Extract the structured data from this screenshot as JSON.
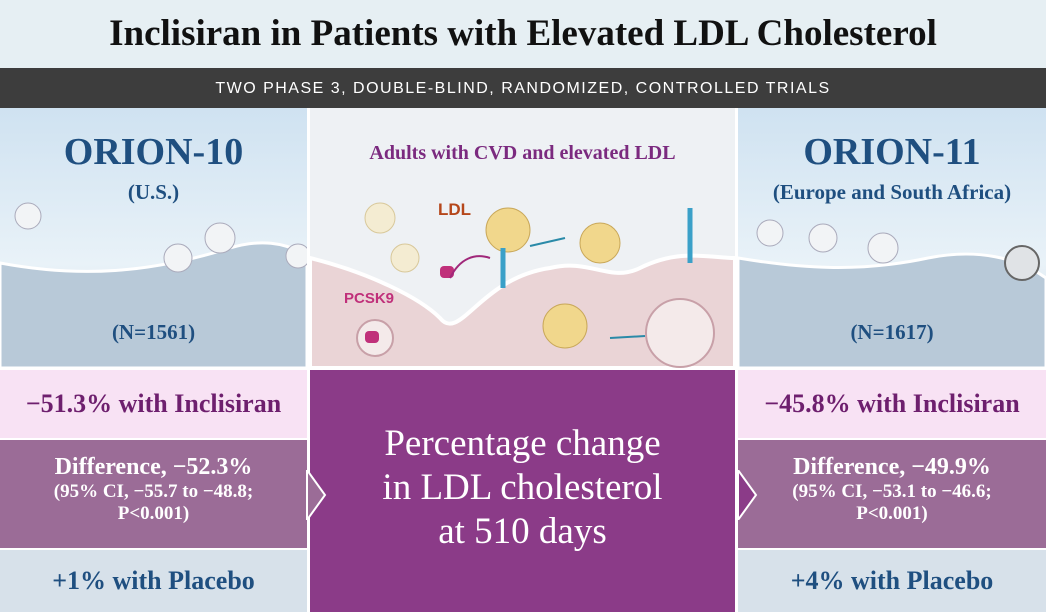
{
  "header": {
    "title": "Inclisiran in Patients with Elevated LDL Cholesterol",
    "subtitle": "TWO PHASE 3, DOUBLE-BLIND, RANDOMIZED, CONTROLLED TRIALS"
  },
  "trials": [
    {
      "name": "ORION-10",
      "region": "(U.S.)",
      "n": "(N=1561)",
      "inclisiran": "−51.3% with Inclisiran",
      "difference": "Difference, −52.3%",
      "ci": "(95% CI, −55.7 to −48.8;",
      "p": "P<0.001)",
      "placebo": "+1% with Placebo"
    },
    {
      "name": "ORION-11",
      "region": "(Europe and South Africa)",
      "n": "(N=1617)",
      "inclisiran": "−45.8% with Inclisiran",
      "difference": "Difference, −49.9%",
      "ci": "(95% CI, −53.1 to −46.6;",
      "p": "P<0.001)",
      "placebo": "+4% with Placebo"
    }
  ],
  "center": {
    "population": "Adults with CVD and elevated LDL",
    "ldl_label": "LDL",
    "pcsk9_label": "PCSK9",
    "outcome": [
      "Percentage change",
      "in LDL cholesterol",
      "at 510 days"
    ]
  }
}
